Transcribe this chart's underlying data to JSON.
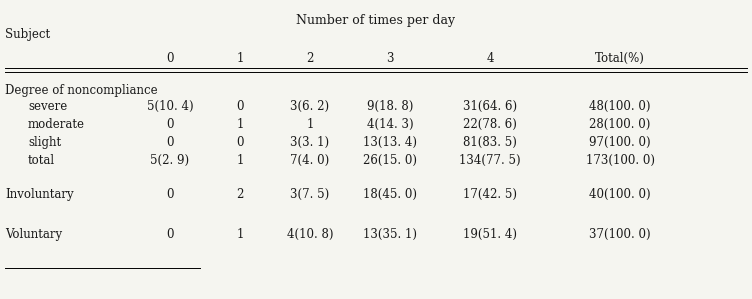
{
  "title": "Number of times per day",
  "subject_label": "Subject",
  "col_headers": [
    "0",
    "1",
    "2",
    "3",
    "4",
    "Total（%）"
  ],
  "col_headers_display": [
    "0",
    "1",
    "2",
    "3",
    "4",
    "Total(%)"
  ],
  "section1_header": "Degree of noncompliance",
  "section1_rows": [
    [
      "severe",
      "5(10. 4)",
      "0",
      "3(6. 2)",
      "9(18. 8)",
      "31(64. 6)",
      "48(100. 0)"
    ],
    [
      "moderate",
      "0",
      "1",
      "1",
      "4(14. 3)",
      "22(78. 6)",
      "28(100. 0)"
    ],
    [
      "slight",
      "0",
      "0",
      "3(3. 1)",
      "13(13. 4)",
      "81(83. 5)",
      "97(100. 0)"
    ],
    [
      "total",
      "5(2. 9)",
      "1",
      "7(4. 0)",
      "26(15. 0)",
      "134(77. 5)",
      "173(100. 0)"
    ]
  ],
  "section2_header": "Involuntary",
  "section2_data": [
    "0",
    "2",
    "3(7. 5)",
    "18(45. 0)",
    "17(42. 5)",
    "40(100. 0)"
  ],
  "section3_header": "Voluntary",
  "section3_data": [
    "0",
    "1",
    "4(10. 8)",
    "13(35. 1)",
    "19(51. 4)",
    "37(100. 0)"
  ],
  "bg_color": "#f5f5f0",
  "text_color": "#1a1a1a",
  "font_size": 8.5,
  "title_font_size": 9.0
}
